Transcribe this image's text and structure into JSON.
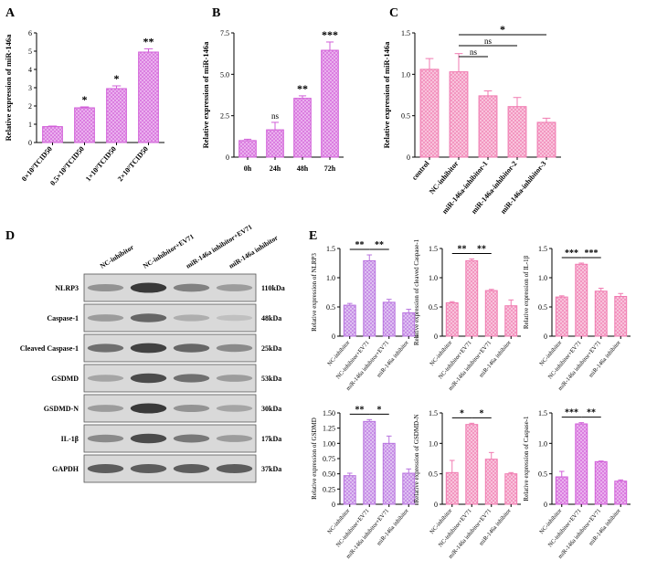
{
  "panels": {
    "A": "A",
    "B": "B",
    "C": "C",
    "D": "D",
    "E": "E"
  },
  "colors": {
    "magenta": "#d15fd8",
    "magenta_fill": "#ecb6f0",
    "violet": "#b873df",
    "violet_fill": "#e2c6f4",
    "pink": "#f07ab0",
    "pink_fill": "#f9c9df"
  },
  "blot": {
    "lanes": [
      "NC-inhibitor",
      "NC-inhibitor+EV71",
      "miR-146a inhibitor+EV71",
      "miR-146a inhibitor"
    ],
    "rows": [
      {
        "label": "NLRP3",
        "kda": "110kDa"
      },
      {
        "label": "Caspase-1",
        "kda": "48kDa"
      },
      {
        "label": "Cleaved Caspase-1",
        "kda": "25kDa"
      },
      {
        "label": "GSDMD",
        "kda": "53kDa"
      },
      {
        "label": "GSDMD-N",
        "kda": "30kDa"
      },
      {
        "label": "IL-1β",
        "kda": "17kDa"
      },
      {
        "label": "GAPDH",
        "kda": "37kDa"
      }
    ]
  },
  "chart_data": [
    {
      "id": "A",
      "type": "bar",
      "ylabel": "Relative expression of miR-146a",
      "categories": [
        "0×10⁵TCID50",
        "0.5×10⁵TCID50",
        "1×10⁵TCID50",
        "2×10⁵TCID50"
      ],
      "values": [
        0.87,
        1.9,
        2.95,
        4.95
      ],
      "errors": [
        0.03,
        0.05,
        0.15,
        0.18
      ],
      "ylim": [
        0,
        6
      ],
      "yticks": [
        "0",
        "1",
        "2",
        "3",
        "4",
        "5",
        "6"
      ],
      "sig": [
        "",
        "*",
        "*",
        "**"
      ],
      "color": "magenta"
    },
    {
      "id": "B",
      "type": "bar",
      "ylabel": "Relative expression of miR-146a",
      "categories": [
        "0h",
        "24h",
        "48h",
        "72h"
      ],
      "values": [
        1.0,
        1.65,
        3.55,
        6.45
      ],
      "errors": [
        0.08,
        0.45,
        0.15,
        0.5
      ],
      "ylim": [
        0,
        7.5
      ],
      "yticks": [
        "0",
        "2.5",
        "5.0",
        "7.5"
      ],
      "sig": [
        "",
        "ns",
        "**",
        "***"
      ],
      "color": "magenta"
    },
    {
      "id": "C",
      "type": "bar",
      "ylabel": "Relative expression of miR-146a",
      "categories": [
        "control",
        "NC-inhibitor",
        "miR-146a-inhibitor-1",
        "miR-146a-inhibitor-2",
        "miR-146a-inhibitor-3"
      ],
      "values": [
        1.06,
        1.03,
        0.74,
        0.61,
        0.42
      ],
      "errors": [
        0.13,
        0.22,
        0.06,
        0.11,
        0.05
      ],
      "ylim": [
        0,
        1.5
      ],
      "yticks": [
        "0",
        "0.5",
        "1.0",
        "1.5"
      ],
      "brackets": [
        {
          "from": 1,
          "to": 4,
          "label": "*"
        },
        {
          "from": 1,
          "to": 3,
          "label": "ns"
        },
        {
          "from": 1,
          "to": 2,
          "label": "ns"
        }
      ],
      "color": "pink"
    },
    {
      "id": "E1",
      "type": "bar",
      "ylabel": "Relative expression of NLRP3",
      "categories": [
        "NC-inhibitor",
        "NC-inhibitor+EV71",
        "miR-146a inhibitor+EV71",
        "miR-146a inhibitor"
      ],
      "values": [
        0.53,
        1.29,
        0.58,
        0.4
      ],
      "errors": [
        0.03,
        0.1,
        0.05,
        0.06
      ],
      "ylim": [
        0,
        1.5
      ],
      "yticks": [
        "0",
        "0.5",
        "1.0",
        "1.5"
      ],
      "brackets": [
        {
          "from": 0,
          "to": 1,
          "label": "**"
        },
        {
          "from": 1,
          "to": 2,
          "label": "**"
        }
      ],
      "color": "violet"
    },
    {
      "id": "E2",
      "type": "bar",
      "ylabel": "Relative expression of cleaved Caspase-1",
      "categories": [
        "NC-inhibitor",
        "NC-inhibitor+EV71",
        "miR-146a inhibitor+EV71",
        "miR-146a inhibitor"
      ],
      "values": [
        0.57,
        1.29,
        0.78,
        0.52
      ],
      "errors": [
        0.02,
        0.03,
        0.02,
        0.1
      ],
      "ylim": [
        0,
        1.5
      ],
      "yticks": [
        "0",
        "0.5",
        "1.0",
        "1.5"
      ],
      "brackets": [
        {
          "from": 0,
          "to": 1,
          "label": "**"
        },
        {
          "from": 1,
          "to": 2,
          "label": "**"
        }
      ],
      "color": "pink"
    },
    {
      "id": "E3",
      "type": "bar",
      "ylabel": "Relative expression of IL-1β",
      "categories": [
        "NC-inhibitor",
        "NC-inhibitor+EV71",
        "miR-146a inhibitor+EV71",
        "miR-146a inhibitor"
      ],
      "values": [
        0.67,
        1.23,
        0.77,
        0.68
      ],
      "errors": [
        0.02,
        0.02,
        0.05,
        0.05
      ],
      "ylim": [
        0,
        1.5
      ],
      "yticks": [
        "0",
        "0.5",
        "1.0",
        "1.5"
      ],
      "brackets": [
        {
          "from": 0,
          "to": 1,
          "label": "***"
        },
        {
          "from": 1,
          "to": 2,
          "label": "***"
        }
      ],
      "color": "pink"
    },
    {
      "id": "E4",
      "type": "bar",
      "ylabel": "Relative expression of GSDMD",
      "categories": [
        "NC-inhibitor",
        "NC-inhibitor+EV71",
        "miR-146a inhibitor+EV71",
        "miR-146a inhibitor"
      ],
      "values": [
        0.47,
        1.36,
        1.0,
        0.51
      ],
      "errors": [
        0.04,
        0.03,
        0.12,
        0.07
      ],
      "ylim": [
        0,
        1.5
      ],
      "yticks": [
        "0",
        "0.25",
        "0.50",
        "0.75",
        "1.00",
        "1.25",
        "1.50"
      ],
      "brackets": [
        {
          "from": 0,
          "to": 1,
          "label": "**"
        },
        {
          "from": 1,
          "to": 2,
          "label": "*"
        }
      ],
      "color": "violet"
    },
    {
      "id": "E5",
      "type": "bar",
      "ylabel": "Relative expression of GSDMD-N",
      "categories": [
        "NC-inhibitor",
        "NC-inhibitor+EV71",
        "miR-146a inhibitor+EV71",
        "miR-146a inhibitor"
      ],
      "values": [
        0.52,
        1.31,
        0.74,
        0.5
      ],
      "errors": [
        0.2,
        0.02,
        0.11,
        0.02
      ],
      "ylim": [
        0,
        1.5
      ],
      "yticks": [
        "0",
        "0.5",
        "1.0",
        "1.5"
      ],
      "brackets": [
        {
          "from": 0,
          "to": 1,
          "label": "*"
        },
        {
          "from": 1,
          "to": 2,
          "label": "*"
        }
      ],
      "color": "pink"
    },
    {
      "id": "E6",
      "type": "bar",
      "ylabel": "Relative expression of Caspase-1",
      "categories": [
        "NC-inhibitor",
        "NC-inhibitor+EV71",
        "miR-146a inhibitor+EV71",
        "miR-146a inhibitor"
      ],
      "values": [
        0.45,
        1.32,
        0.7,
        0.38
      ],
      "errors": [
        0.09,
        0.02,
        0.01,
        0.02
      ],
      "ylim": [
        0,
        1.5
      ],
      "yticks": [
        "0",
        "0.5",
        "1.0",
        "1.5"
      ],
      "brackets": [
        {
          "from": 0,
          "to": 1,
          "label": "***"
        },
        {
          "from": 1,
          "to": 2,
          "label": "**"
        }
      ],
      "color": "magenta"
    }
  ]
}
